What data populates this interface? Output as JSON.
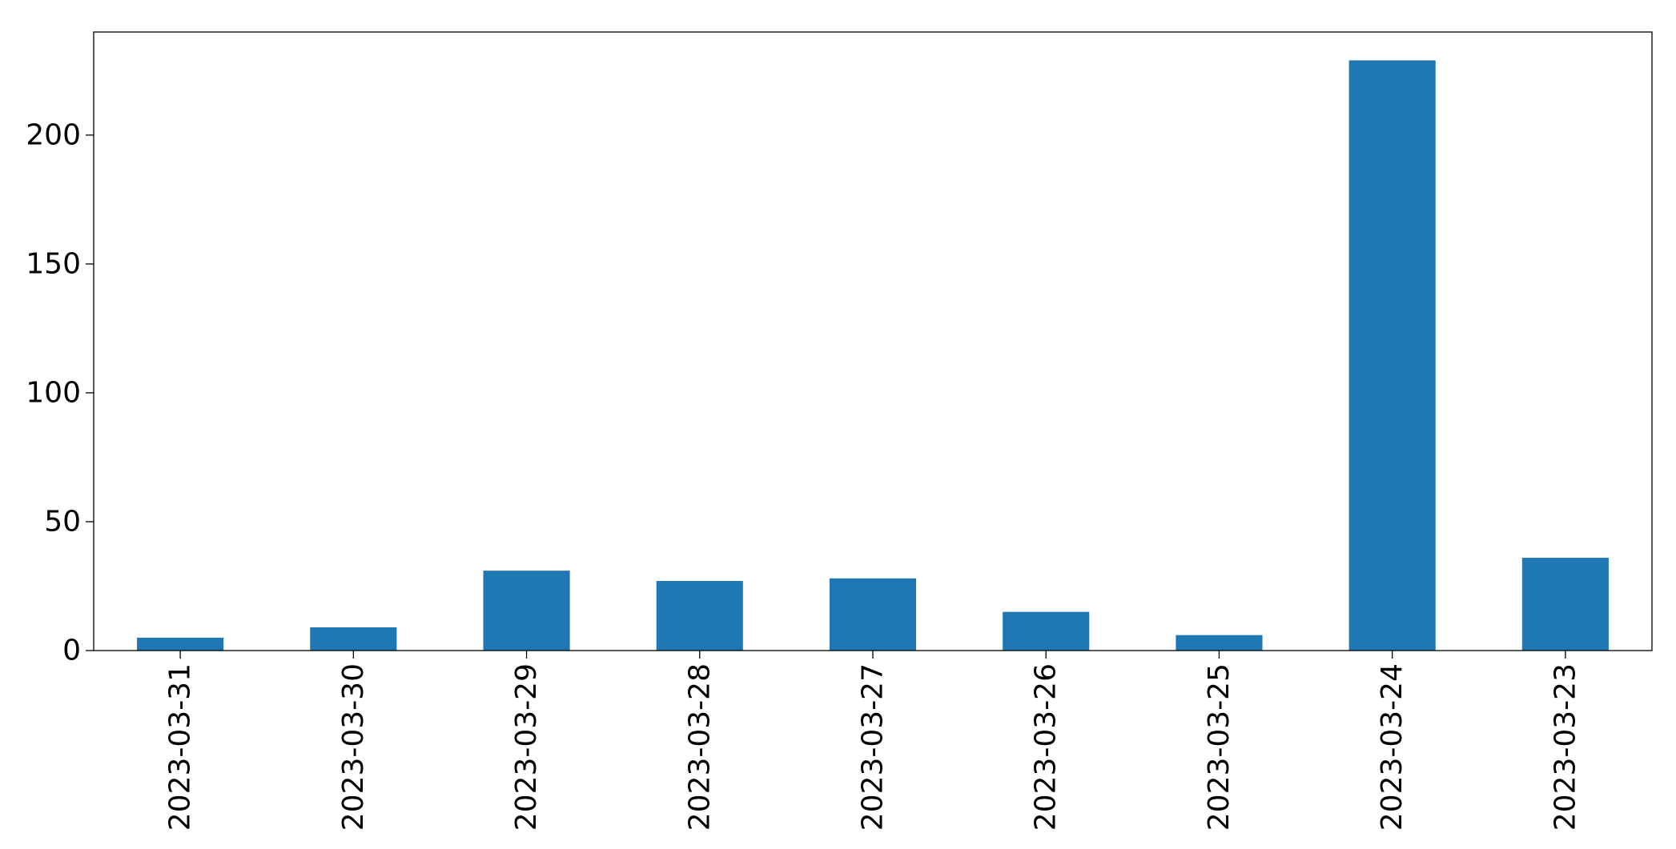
{
  "chart_data": {
    "type": "bar",
    "title": "",
    "xlabel": "",
    "ylabel": "",
    "categories": [
      "2023-03-31",
      "2023-03-30",
      "2023-03-29",
      "2023-03-28",
      "2023-03-27",
      "2023-03-26",
      "2023-03-25",
      "2023-03-24",
      "2023-03-23"
    ],
    "values": [
      5,
      9,
      31,
      27,
      28,
      15,
      6,
      229,
      36
    ],
    "ylim": [
      0,
      240
    ],
    "yticks": [
      0,
      50,
      100,
      150,
      200
    ],
    "grid": false,
    "legend": "none",
    "bar_color": "#1f77b4",
    "axis_color": "#000000"
  }
}
